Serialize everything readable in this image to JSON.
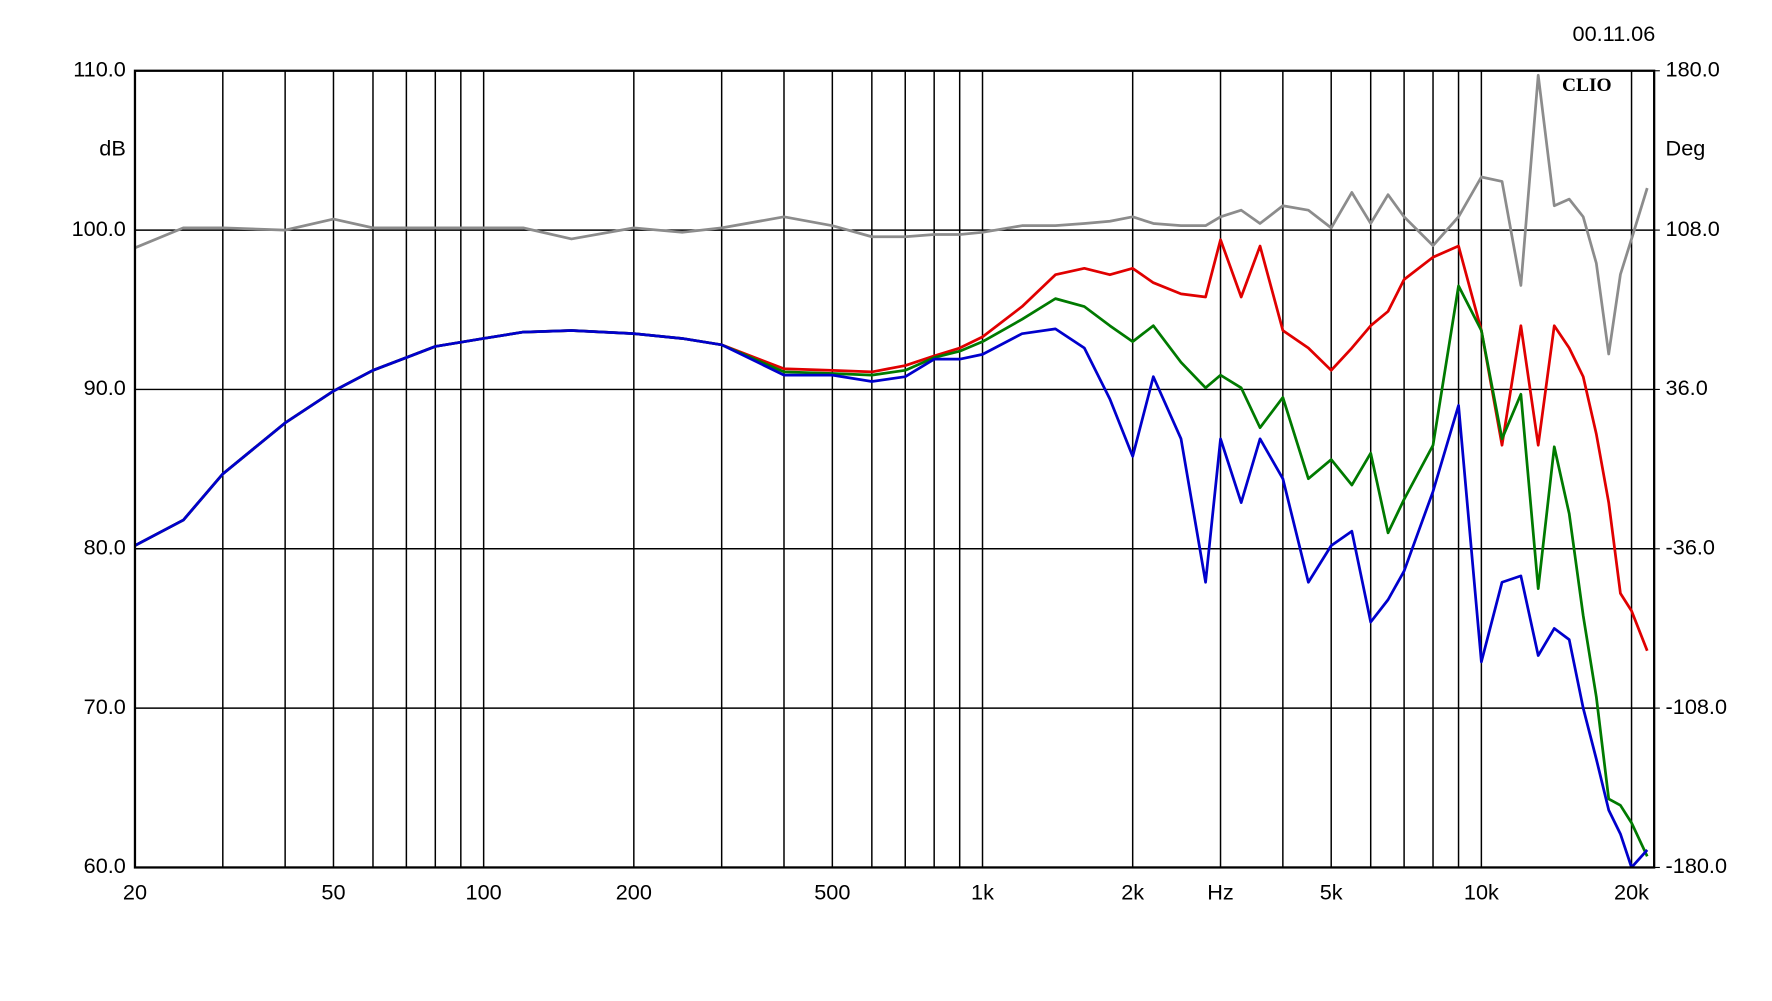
{
  "chart_data": {
    "type": "line",
    "date": "00.11.06",
    "logo": "CLIO",
    "y_label": "dB",
    "y2_label": "Deg",
    "x_log": true,
    "grid": true,
    "xlim": [
      20,
      22200
    ],
    "xticks": [
      20,
      50,
      100,
      200,
      500,
      {
        "value": 1000,
        "label": "1k"
      },
      {
        "value": 2000,
        "label": "2k"
      },
      {
        "value": 3000,
        "label": "Hz"
      },
      {
        "value": 5000,
        "label": "5k"
      },
      {
        "value": 10000,
        "label": "10k"
      },
      {
        "value": 20000,
        "label": "20k"
      }
    ],
    "x_minor_grid": [
      30,
      40,
      60,
      70,
      80,
      90,
      300,
      400,
      600,
      700,
      800,
      900,
      4000,
      6000,
      7000,
      8000,
      9000
    ],
    "ylim": [
      60,
      110
    ],
    "yticks": [
      {
        "value": 60,
        "label": "60.0"
      },
      {
        "value": 70,
        "label": "70.0"
      },
      {
        "value": 80,
        "label": "80.0"
      },
      {
        "value": 90,
        "label": "90.0"
      },
      {
        "value": 100,
        "label": "100.0"
      },
      {
        "value": 110,
        "label": "110.0"
      }
    ],
    "y2lim": [
      -180,
      180
    ],
    "y2ticks": [
      {
        "value": -180,
        "label": "-180.0"
      },
      {
        "value": -108,
        "label": "-108.0"
      },
      {
        "value": -36,
        "label": "-36.0"
      },
      {
        "value": 36,
        "label": "36.0"
      },
      {
        "value": 108,
        "label": "108.0"
      },
      {
        "value": 180,
        "label": "180.0"
      }
    ],
    "x": [
      20,
      25,
      30,
      40,
      50,
      60,
      70,
      80,
      100,
      120,
      150,
      200,
      250,
      300,
      400,
      500,
      600,
      700,
      800,
      900,
      1000,
      1200,
      1400,
      1600,
      1800,
      2000,
      2200,
      2500,
      2800,
      3000,
      3300,
      3600,
      4000,
      4500,
      5000,
      5500,
      6000,
      6500,
      7000,
      8000,
      9000,
      10000,
      11000,
      12000,
      13000,
      14000,
      15000,
      16000,
      17000,
      18000,
      19000,
      20000,
      21500
    ],
    "series": [
      {
        "color": "#8c8c8c",
        "axis": "y2",
        "values": [
          100,
          109,
          109,
          108,
          113,
          109,
          109,
          109,
          109,
          109,
          104,
          109,
          107,
          109,
          114,
          110,
          105,
          105,
          106,
          106,
          107,
          110,
          110,
          111,
          112,
          114,
          111,
          110,
          110,
          114,
          117,
          111,
          119,
          117,
          109,
          125,
          111,
          124,
          114,
          101,
          114,
          132,
          130,
          83,
          178,
          119,
          122,
          114,
          93,
          52,
          88,
          104,
          127
        ]
      },
      {
        "color": "#e00000",
        "values": [
          80.2,
          81.8,
          84.7,
          87.9,
          89.9,
          91.2,
          92.0,
          92.7,
          93.2,
          93.6,
          93.7,
          93.5,
          93.2,
          92.8,
          91.3,
          91.2,
          91.1,
          91.5,
          92.1,
          92.6,
          93.3,
          95.2,
          97.2,
          97.6,
          97.2,
          97.6,
          96.7,
          96.0,
          95.8,
          99.4,
          95.8,
          99.0,
          93.7,
          92.6,
          91.2,
          92.6,
          94.0,
          94.9,
          96.9,
          98.3,
          99.0,
          93.7,
          86.5,
          94.0,
          86.5,
          94.0,
          92.6,
          90.8,
          87.2,
          82.9,
          77.2,
          76.1,
          73.6
        ]
      },
      {
        "color": "#007a00",
        "values": [
          80.2,
          81.8,
          84.7,
          87.9,
          89.9,
          91.2,
          92.0,
          92.7,
          93.2,
          93.6,
          93.7,
          93.5,
          93.2,
          92.8,
          91.1,
          91.0,
          90.9,
          91.2,
          92.0,
          92.4,
          93.0,
          94.4,
          95.7,
          95.2,
          94.0,
          93.0,
          94.0,
          91.7,
          90.1,
          90.9,
          90.1,
          87.6,
          89.5,
          84.4,
          85.6,
          84.0,
          86.0,
          81.0,
          83.1,
          86.5,
          96.5,
          93.7,
          86.9,
          89.7,
          77.5,
          86.4,
          82.2,
          75.8,
          70.7,
          64.3,
          63.9,
          62.8,
          60.7
        ]
      },
      {
        "color": "#0000cc",
        "values": [
          80.2,
          81.8,
          84.7,
          87.9,
          89.9,
          91.2,
          92.0,
          92.7,
          93.2,
          93.6,
          93.7,
          93.5,
          93.2,
          92.8,
          90.9,
          90.9,
          90.5,
          90.8,
          91.9,
          91.9,
          92.2,
          93.5,
          93.8,
          92.6,
          89.4,
          85.8,
          90.8,
          86.9,
          77.9,
          86.9,
          82.9,
          86.9,
          84.4,
          77.9,
          80.2,
          81.1,
          75.4,
          76.8,
          78.6,
          83.6,
          89.0,
          72.9,
          77.9,
          78.3,
          73.3,
          75.0,
          74.3,
          70.0,
          66.8,
          63.6,
          62.1,
          60.0,
          61.1
        ]
      }
    ]
  }
}
